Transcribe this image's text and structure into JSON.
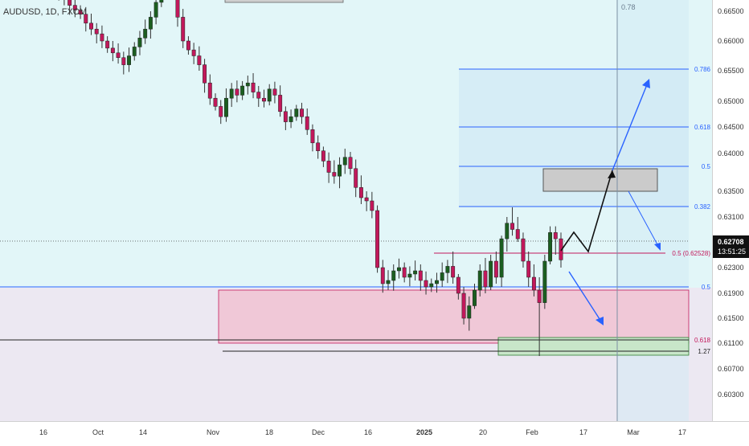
{
  "symbol": "AUDUSD, 1D, FXCM",
  "price_tag": {
    "price": "0.62708",
    "countdown": "13:51:25",
    "color": "#000000"
  },
  "colors": {
    "bull": "#1b5e20",
    "bear": "#c2185b",
    "upper_bg": "#e0f5f7",
    "lower_bg": "#ebe7f1",
    "blue_line": "#2962ff",
    "zone_red_fill": "#f2c6d6",
    "zone_green_fill": "#c8e6c9",
    "zone_grey_fill": "#c8c8c8"
  },
  "chart_data": {
    "type": "candlestick",
    "x_ticks": [
      "16",
      "Oct",
      "14",
      "Nov",
      "18",
      "Dec",
      "16",
      "2025",
      "20",
      "Feb",
      "17",
      "Mar",
      "17"
    ],
    "y_ticks": [
      "0.66500",
      "0.66000",
      "0.65500",
      "0.65000",
      "0.64500",
      "0.64000",
      "0.63500",
      "0.63100",
      "0.62700",
      "0.62300",
      "0.61900",
      "0.61500",
      "0.61100",
      "0.60700",
      "0.60300"
    ],
    "ylim": [
      0.6,
      0.668
    ],
    "fib_upper": [
      {
        "label": "0.786",
        "price": 0.6557
      },
      {
        "label": "0.618",
        "price": 0.6458
      },
      {
        "label": "0.5",
        "price": 0.6398
      },
      {
        "label": "0.382",
        "price": 0.6323
      }
    ],
    "fib_lower": [
      {
        "label": "0.5",
        "price": 0.6195
      },
      {
        "label": "0.618",
        "price": 0.6113
      },
      {
        "label": "1.27",
        "price": 0.6097
      }
    ],
    "reference_line": {
      "label": "0.5 (0.62528)",
      "price": 0.62528
    },
    "vertical_marker": {
      "label": "0.78",
      "date_index": 124
    },
    "candles_tail": [
      {
        "o": 0.6232,
        "h": 0.6255,
        "l": 0.6205,
        "c": 0.6215
      },
      {
        "o": 0.6215,
        "h": 0.622,
        "l": 0.618,
        "c": 0.619
      },
      {
        "o": 0.619,
        "h": 0.62,
        "l": 0.614,
        "c": 0.615
      },
      {
        "o": 0.615,
        "h": 0.6185,
        "l": 0.613,
        "c": 0.617
      },
      {
        "o": 0.617,
        "h": 0.6205,
        "l": 0.6165,
        "c": 0.6195
      },
      {
        "o": 0.6195,
        "h": 0.6235,
        "l": 0.6185,
        "c": 0.6225
      },
      {
        "o": 0.6225,
        "h": 0.6245,
        "l": 0.619,
        "c": 0.62
      },
      {
        "o": 0.62,
        "h": 0.625,
        "l": 0.6195,
        "c": 0.624
      },
      {
        "o": 0.624,
        "h": 0.6255,
        "l": 0.6205,
        "c": 0.6215
      },
      {
        "o": 0.6215,
        "h": 0.628,
        "l": 0.62,
        "c": 0.6275
      },
      {
        "o": 0.6275,
        "h": 0.631,
        "l": 0.6255,
        "c": 0.63
      },
      {
        "o": 0.63,
        "h": 0.6325,
        "l": 0.628,
        "c": 0.629
      },
      {
        "o": 0.629,
        "h": 0.631,
        "l": 0.627,
        "c": 0.6275
      },
      {
        "o": 0.6275,
        "h": 0.6285,
        "l": 0.623,
        "c": 0.624
      },
      {
        "o": 0.624,
        "h": 0.6255,
        "l": 0.62,
        "c": 0.6215
      },
      {
        "o": 0.6215,
        "h": 0.6235,
        "l": 0.6185,
        "c": 0.6195
      },
      {
        "o": 0.6195,
        "h": 0.6215,
        "l": 0.609,
        "c": 0.6175
      },
      {
        "o": 0.6175,
        "h": 0.625,
        "l": 0.6165,
        "c": 0.624
      },
      {
        "o": 0.624,
        "h": 0.6295,
        "l": 0.6235,
        "c": 0.6285
      },
      {
        "o": 0.6285,
        "h": 0.6295,
        "l": 0.625,
        "c": 0.6275
      },
      {
        "o": 0.6275,
        "h": 0.6285,
        "l": 0.623,
        "c": 0.6242
      }
    ]
  }
}
